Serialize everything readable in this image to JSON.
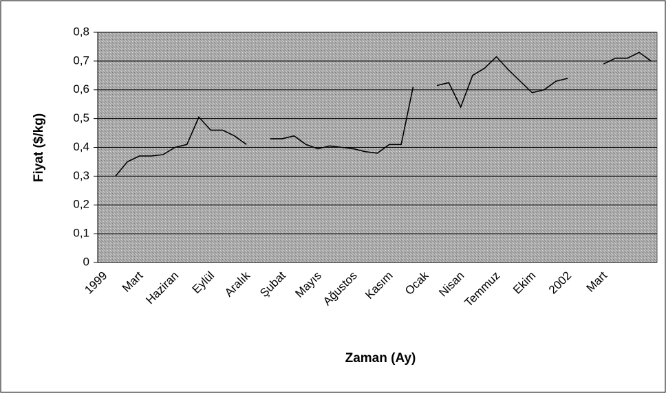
{
  "chart_data": {
    "type": "line",
    "x_label": "Zaman (Ay)",
    "y_label": "Fiyat ($/kg)",
    "categories": [
      "1999",
      null,
      null,
      "Mart",
      null,
      null,
      "Haziran",
      null,
      null,
      "Eylül",
      null,
      null,
      "Aralık",
      null,
      null,
      "Şubat",
      null,
      null,
      "Mayıs",
      null,
      null,
      "Ağustos",
      null,
      null,
      "Kasım",
      null,
      null,
      "Ocak",
      null,
      null,
      "Nisan",
      null,
      null,
      "Temmuz",
      null,
      null,
      "Ekim",
      null,
      null,
      "2002",
      null,
      null,
      "Mart",
      null,
      null,
      null,
      null
    ],
    "series": [
      {
        "name": "Fiyat",
        "color": "#000000",
        "values": [
          null,
          0.3,
          0.35,
          0.37,
          0.37,
          0.375,
          0.4,
          0.41,
          0.505,
          0.46,
          0.46,
          0.44,
          0.41,
          null,
          0.43,
          0.43,
          0.44,
          0.41,
          0.395,
          0.405,
          0.4,
          0.395,
          0.385,
          0.38,
          0.41,
          0.41,
          0.61,
          null,
          0.615,
          0.625,
          0.54,
          0.65,
          0.675,
          0.715,
          0.67,
          0.63,
          0.59,
          0.6,
          0.63,
          0.64,
          null,
          null,
          0.69,
          0.71,
          0.71,
          0.73,
          0.7
        ]
      }
    ],
    "ylim": [
      0,
      0.8
    ],
    "yticks": [
      0,
      {
        "value": 0.1,
        "label": "0,1"
      },
      {
        "value": 0.2,
        "label": "0,2"
      },
      {
        "value": 0.3,
        "label": "0,3"
      },
      {
        "value": 0.4,
        "label": "0,4"
      },
      {
        "value": 0.5,
        "label": "0,5"
      },
      {
        "value": 0.6,
        "label": "0,6"
      },
      {
        "value": 0.7,
        "label": "0,7"
      },
      {
        "value": 0.8,
        "label": "0,8"
      }
    ],
    "grid": true
  }
}
